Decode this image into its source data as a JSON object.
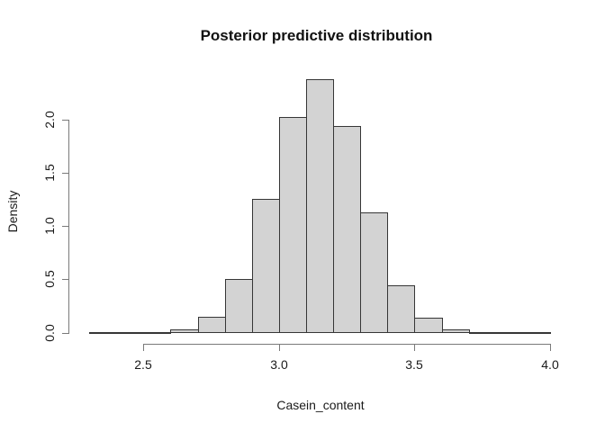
{
  "title": "Posterior predictive distribution",
  "x_axis": {
    "label": "Casein_content",
    "tick_labels": [
      "2.5",
      "3.0",
      "3.5",
      "4.0"
    ],
    "tick_values": [
      2.5,
      3.0,
      3.5,
      4.0
    ]
  },
  "y_axis": {
    "label": "Density",
    "tick_labels": [
      "0.0",
      "0.5",
      "1.0",
      "1.5",
      "2.0"
    ],
    "tick_values": [
      0.0,
      0.5,
      1.0,
      1.5,
      2.0
    ]
  },
  "colors": {
    "background": "#ffffff",
    "bar_fill": "#d3d3d3",
    "bar_border": "#363636",
    "axis": "#7a7a7a",
    "text": "#111111"
  },
  "chart_data": {
    "type": "bar",
    "subtype": "histogram",
    "title": "Posterior predictive distribution",
    "xlabel": "Casein_content",
    "ylabel": "Density",
    "bin_start": 2.3,
    "bin_width": 0.1,
    "bin_edges": [
      2.3,
      2.4,
      2.5,
      2.6,
      2.7,
      2.8,
      2.9,
      3.0,
      3.1,
      3.2,
      3.3,
      3.4,
      3.5,
      3.6,
      3.7,
      3.8,
      3.9,
      4.0
    ],
    "densities": [
      0.002,
      0.005,
      0.01,
      0.03,
      0.15,
      0.51,
      1.26,
      2.03,
      2.38,
      1.94,
      1.13,
      0.45,
      0.14,
      0.03,
      0.005,
      0.003,
      0.002
    ],
    "xlim": [
      2.5,
      4.0
    ],
    "ylim": [
      0.0,
      2.38
    ],
    "x_tick_values": [
      2.5,
      3.0,
      3.5,
      4.0
    ],
    "y_tick_values": [
      0.0,
      0.5,
      1.0,
      1.5,
      2.0
    ],
    "grid": false,
    "legend": null
  }
}
